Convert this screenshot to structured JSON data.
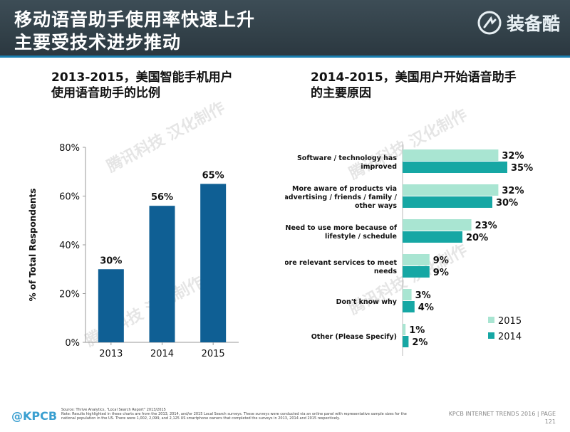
{
  "header": {
    "title_line1": "移动语音助手使用率快速上升",
    "title_line2": "主要受技术进步推动",
    "logo_text": "装备酷"
  },
  "watermark_text": "腾讯科技 汉化制作",
  "left": {
    "subtitle_line1": "2013-2015，美国智能手机用户",
    "subtitle_line2": "使用语音助手的比例"
  },
  "right": {
    "subtitle_line1": "2014-2015，美国用户开始语音助手",
    "subtitle_line2": "的主要原因"
  },
  "chart_data": [
    {
      "type": "bar",
      "categories": [
        "2013",
        "2014",
        "2015"
      ],
      "values": [
        30,
        56,
        65
      ],
      "value_labels": [
        "30%",
        "56%",
        "65%"
      ],
      "ylabel": "% of Total Respondents",
      "ylim": [
        0,
        80
      ],
      "yticks": [
        0,
        20,
        40,
        60,
        80
      ],
      "ytick_labels": [
        "0%",
        "20%",
        "40%",
        "60%",
        "80%"
      ],
      "color": "#0f5f94",
      "grid": false
    },
    {
      "type": "bar",
      "orientation": "horizontal",
      "categories": [
        [
          "Software / technology has",
          "improved"
        ],
        [
          "More aware of products via",
          "advertising / friends / family /",
          "other ways"
        ],
        [
          "Need to use more because of",
          "lifestyle / schedule"
        ],
        [
          "More relevant services to meet",
          "needs"
        ],
        [
          "Don't know why"
        ],
        [
          "Other (Please Specify)"
        ]
      ],
      "series": [
        {
          "name": "2015",
          "values": [
            32,
            32,
            23,
            9,
            3,
            1
          ],
          "labels": [
            "32%",
            "32%",
            "23%",
            "9%",
            "3%",
            "1%"
          ],
          "color": "#a9e5d2"
        },
        {
          "name": "2014",
          "values": [
            35,
            30,
            20,
            9,
            4,
            2
          ],
          "labels": [
            "35%",
            "30%",
            "20%",
            "9%",
            "4%",
            "2%"
          ],
          "color": "#16a7a4"
        }
      ],
      "legend_position": "bottom-right",
      "grid": false
    }
  ],
  "footer": {
    "logo": "@KPCB",
    "source_line1": "Source: Thrive Analytics, \"Local Search Report\" 2013/2015",
    "source_line2": "Note: Results highlighted in these charts are from the 2013, 2014, and/or 2015 Local Search surveys. These surveys were conducted via an online panel with representative sample sizes for the national population in the US. There were 1,002, 2,099, and 2,125 US smartphone owners that completed the surveys in 2013, 2014 and 2015 respectively.",
    "page_text": "KPCB INTERNET TRENDS 2016  |  PAGE",
    "page_number": "121"
  }
}
